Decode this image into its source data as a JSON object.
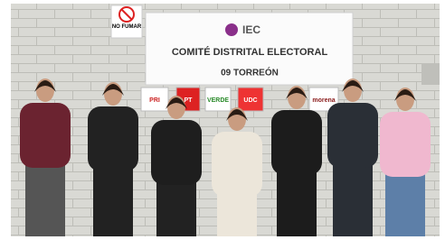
{
  "no_smoking_sign": {
    "text": "NO FUMAR"
  },
  "sign": {
    "logo": "IEC",
    "title": "COMITÉ DISTRITAL ELECTORAL",
    "subtitle": "09 TORREÓN"
  },
  "party_logos": [
    {
      "label": "PRI"
    },
    {
      "label": "PT"
    },
    {
      "label": "VERDE"
    },
    {
      "label": "UDC"
    },
    {
      "label": "morena"
    }
  ]
}
